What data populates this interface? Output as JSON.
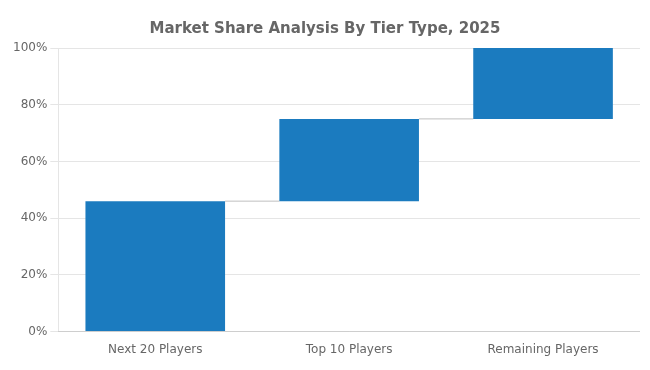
{
  "chart_data": {
    "type": "waterfall",
    "title": "Market Share Analysis By Tier Type, 2025",
    "categories": [
      "Next 20 Players",
      "Top 10 Players",
      "Remaining Players"
    ],
    "values": [
      46,
      29,
      25
    ],
    "color": "#1b7bbf",
    "ylim": [
      0,
      100
    ],
    "yticks": [
      {
        "value": 0,
        "label": "0%"
      },
      {
        "value": 20,
        "label": "20%"
      },
      {
        "value": 40,
        "label": "40%"
      },
      {
        "value": 60,
        "label": "60%"
      },
      {
        "value": 80,
        "label": "80%"
      },
      {
        "value": 100,
        "label": "100%"
      }
    ],
    "grid": true
  }
}
